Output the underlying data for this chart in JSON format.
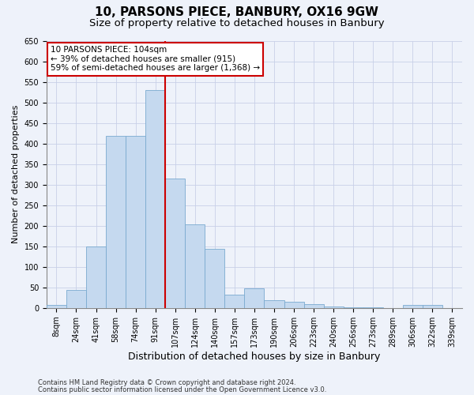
{
  "title": "10, PARSONS PIECE, BANBURY, OX16 9GW",
  "subtitle": "Size of property relative to detached houses in Banbury",
  "xlabel": "Distribution of detached houses by size in Banbury",
  "ylabel": "Number of detached properties",
  "footer_line1": "Contains HM Land Registry data © Crown copyright and database right 2024.",
  "footer_line2": "Contains public sector information licensed under the Open Government Licence v3.0.",
  "bar_labels": [
    "8sqm",
    "24sqm",
    "41sqm",
    "58sqm",
    "74sqm",
    "91sqm",
    "107sqm",
    "124sqm",
    "140sqm",
    "157sqm",
    "173sqm",
    "190sqm",
    "206sqm",
    "223sqm",
    "240sqm",
    "256sqm",
    "273sqm",
    "289sqm",
    "306sqm",
    "322sqm",
    "339sqm"
  ],
  "bar_values": [
    8,
    43,
    150,
    418,
    418,
    530,
    315,
    204,
    143,
    33,
    48,
    18,
    15,
    10,
    3,
    2,
    1,
    0,
    8,
    8
  ],
  "bar_color": "#c5d9ef",
  "bar_edge_color": "#7aaacf",
  "annotation_text": "10 PARSONS PIECE: 104sqm\n← 39% of detached houses are smaller (915)\n59% of semi-detached houses are larger (1,368) →",
  "marker_col_index": 6,
  "marker_color": "#cc0000",
  "ylim": [
    0,
    650
  ],
  "yticks": [
    0,
    50,
    100,
    150,
    200,
    250,
    300,
    350,
    400,
    450,
    500,
    550,
    600,
    650
  ],
  "bg_color": "#eef2fa",
  "grid_color": "#c8d0e8",
  "anno_box_fc": "#ffffff",
  "anno_box_ec": "#cc0000",
  "title_fontsize": 11,
  "subtitle_fontsize": 9.5,
  "xlabel_fontsize": 9,
  "ylabel_fontsize": 8,
  "tick_fontsize": 7,
  "footer_fontsize": 6,
  "anno_fontsize": 7.5
}
